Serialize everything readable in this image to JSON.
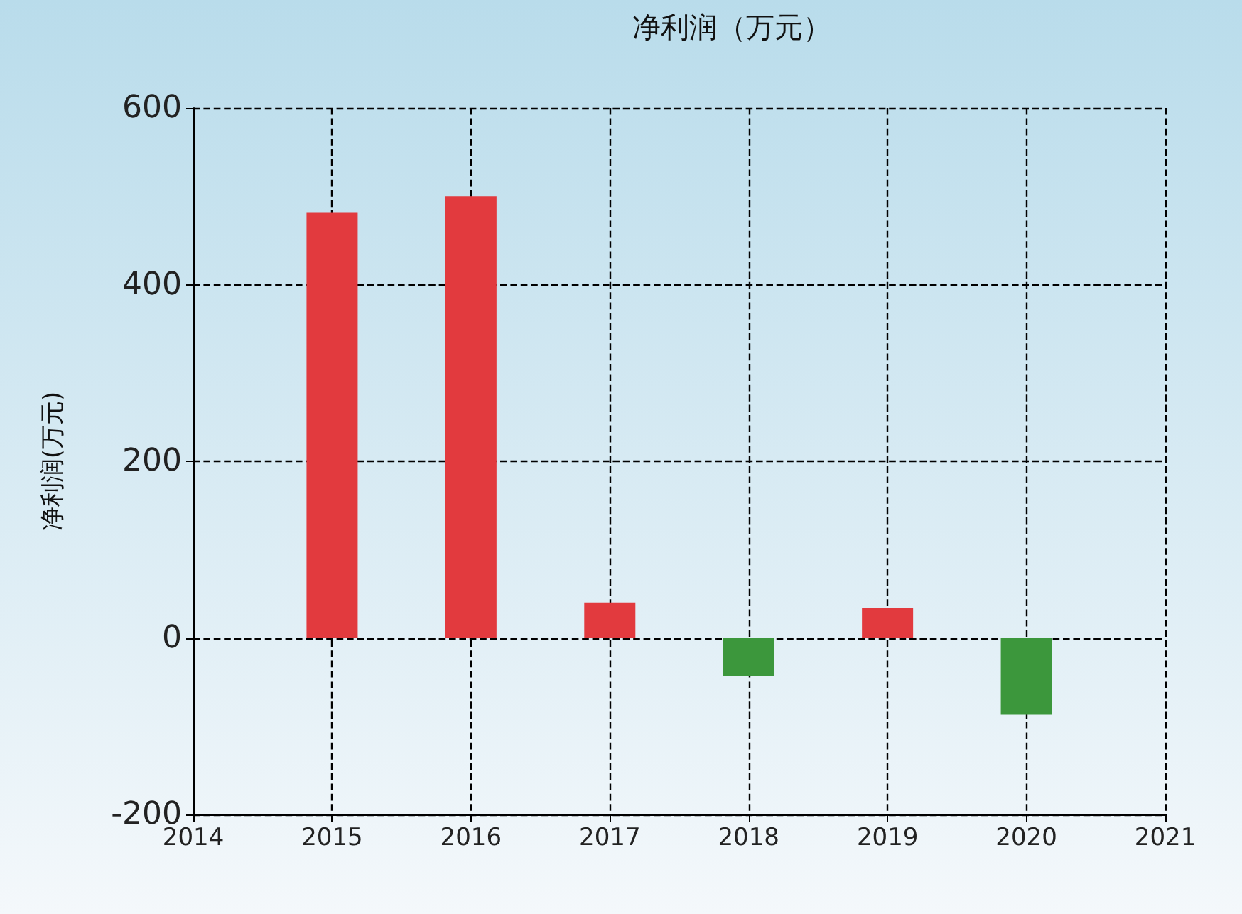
{
  "chart_data": {
    "type": "bar",
    "title": "净利润（万元）",
    "ylabel": "净利润(万元)",
    "x": [
      2015,
      2016,
      2017,
      2018,
      2019,
      2020
    ],
    "values": [
      482,
      500,
      40,
      -43,
      34,
      -87
    ],
    "colors": [
      "#e23a3e",
      "#e23a3e",
      "#e23a3e",
      "#3c973c",
      "#e23a3e",
      "#3c973c"
    ],
    "xlim": [
      2014,
      2021
    ],
    "xticks": [
      2014,
      2015,
      2016,
      2017,
      2018,
      2019,
      2020,
      2021
    ],
    "ylim": [
      -200,
      600
    ],
    "yticks": [
      -200,
      0,
      200,
      400,
      600
    ],
    "grid": true
  }
}
